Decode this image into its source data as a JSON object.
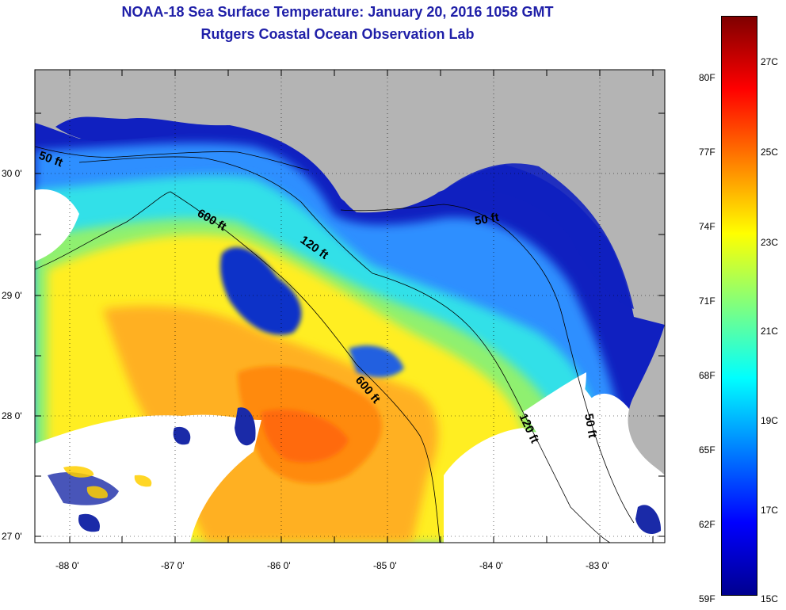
{
  "title": {
    "line1": "NOAA-18 Sea Surface Temperature:  January 20, 2016 1058 GMT",
    "line2": "Rutgers Coastal Ocean Observation Lab"
  },
  "axes": {
    "lat_labels": [
      {
        "value": 30,
        "text": "30 0'"
      },
      {
        "value": 29,
        "text": "29 0'"
      },
      {
        "value": 28,
        "text": "28 0'"
      },
      {
        "value": 27,
        "text": "27 0'"
      }
    ],
    "lon_labels": [
      {
        "value": -88,
        "text": "-88 0'"
      },
      {
        "value": -87,
        "text": "-87 0'"
      },
      {
        "value": -86,
        "text": "-86 0'"
      },
      {
        "value": -85,
        "text": "-85 0'"
      },
      {
        "value": -84,
        "text": "-84 0'"
      },
      {
        "value": -83,
        "text": "-83 0'"
      }
    ]
  },
  "contours": [
    {
      "label": "50 ft"
    },
    {
      "label": "600 ft"
    },
    {
      "label": "120 ft"
    },
    {
      "label": "50 ft"
    },
    {
      "label": "600 ft"
    },
    {
      "label": "120 ft"
    },
    {
      "label": "50 ft"
    }
  ],
  "colorbar": {
    "fahrenheit": [
      "80F",
      "77F",
      "74F",
      "71F",
      "68F",
      "65F",
      "62F",
      "59F"
    ],
    "celsius": [
      "27C",
      "25C",
      "23C",
      "21C",
      "19C",
      "17C",
      "15C"
    ],
    "colors": [
      "#00008f",
      "#0000ff",
      "#007fff",
      "#00ffff",
      "#7fff7f",
      "#ffff00",
      "#ff7f00",
      "#ff0000",
      "#7f0000"
    ]
  },
  "colors": {
    "land": "#b4b4b4",
    "title": "#1f1fa8"
  }
}
